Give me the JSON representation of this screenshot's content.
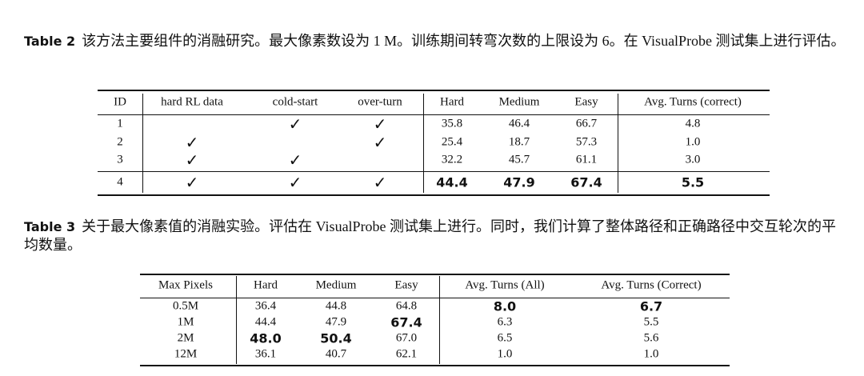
{
  "table2": {
    "label": "Table 2",
    "caption": "该方法主要组件的消融研究。最大像素数设为 1 M。训练期间转弯次数的上限设为 6。在 VisualProbe 测试集上进行评估。",
    "header": [
      "ID",
      "hard RL data",
      "cold-start",
      "over-turn",
      "Hard",
      "Medium",
      "Easy",
      "Avg. Turns (correct)"
    ],
    "rows": [
      [
        "1",
        null,
        "✓",
        "✓",
        "35.8",
        "46.4",
        "66.7",
        "4.8"
      ],
      [
        "2",
        "✓",
        null,
        "✓",
        "25.4",
        "18.7",
        "57.3",
        "1.0"
      ],
      [
        "3",
        "✓",
        "✓",
        null,
        "32.2",
        "45.7",
        "61.1",
        "3.0"
      ],
      [
        "4",
        "✓",
        "✓",
        "✓",
        {
          "text": "44.4",
          "bold": true
        },
        {
          "text": "47.9",
          "bold": true
        },
        {
          "text": "67.4",
          "bold": true
        },
        {
          "text": "5.5",
          "bold": true
        }
      ]
    ]
  },
  "table3": {
    "label": "Table 3",
    "caption": "关于最大像素值的消融实验。评估在 VisualProbe 测试集上进行。同时，我们计算了整体路径和正确路径中交互轮次的平均数量。",
    "header": [
      "Max Pixels",
      "Hard",
      "Medium",
      "Easy",
      "Avg. Turns (All)",
      "Avg. Turns (Correct)"
    ],
    "rows": [
      [
        "0.5M",
        "36.4",
        "44.8",
        "64.8",
        {
          "text": "8.0",
          "bold": true
        },
        {
          "text": "6.7",
          "bold": true
        }
      ],
      [
        "1M",
        "44.4",
        "47.9",
        {
          "text": "67.4",
          "bold": true
        },
        "6.3",
        "5.5"
      ],
      [
        "2M",
        {
          "text": "48.0",
          "bold": true
        },
        {
          "text": "50.4",
          "bold": true
        },
        "67.0",
        "6.5",
        "5.6"
      ],
      [
        "12M",
        "36.1",
        "40.7",
        "62.1",
        "1.0",
        "1.0"
      ]
    ]
  }
}
